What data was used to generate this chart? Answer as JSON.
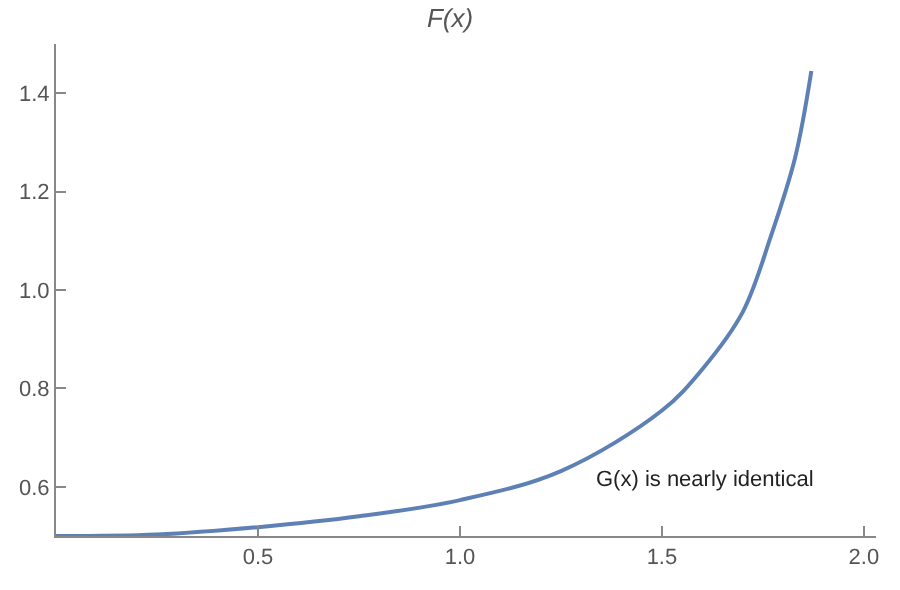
{
  "chart_data": {
    "type": "line",
    "title": "F(x)",
    "x": [
      0,
      0.25,
      0.5,
      0.75,
      1.0,
      1.25,
      1.5,
      1.6,
      1.7,
      1.77,
      1.83,
      1.87
    ],
    "series": [
      {
        "color": "#5e81b5",
        "values": [
          0.5,
          0.503,
          0.518,
          0.54,
          0.573,
          0.632,
          0.755,
          0.839,
          0.955,
          1.11,
          1.27,
          1.445
        ]
      }
    ],
    "xlim": [
      0,
      2.03
    ],
    "ylim": [
      0.5,
      1.5
    ],
    "xticks": [
      {
        "value": 0.5,
        "label": "0.5"
      },
      {
        "value": 1.0,
        "label": "1.0"
      },
      {
        "value": 1.5,
        "label": "1.5"
      },
      {
        "value": 2.0,
        "label": "2.0"
      }
    ],
    "yticks": [
      {
        "value": 0.6,
        "label": "0.6"
      },
      {
        "value": 0.8,
        "label": "0.8"
      },
      {
        "value": 1.0,
        "label": "1.0"
      },
      {
        "value": 1.2,
        "label": "1.2"
      },
      {
        "value": 1.4,
        "label": "1.4"
      }
    ],
    "annotations": [
      "G(x) is nearly identical"
    ],
    "marker": "none",
    "line_style": "solid"
  }
}
